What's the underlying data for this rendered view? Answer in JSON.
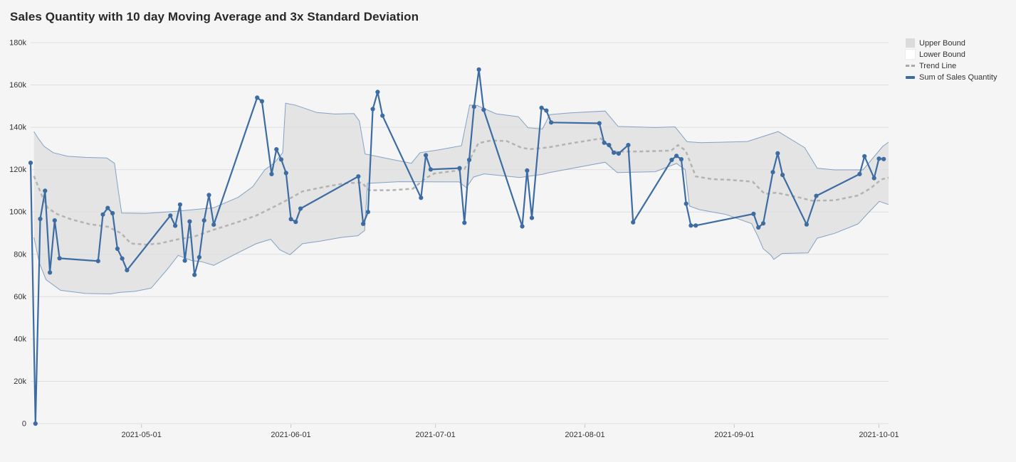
{
  "header": {
    "title": "Sales Quantity with 10 day Moving Average and 3x Standard Deviation"
  },
  "legend": {
    "items": [
      {
        "label": "Upper Bound",
        "swatch": "gray-square",
        "color": "#dbdbdb"
      },
      {
        "label": "Lower Bound",
        "swatch": "white-square",
        "color": "#ffffff"
      },
      {
        "label": "Trend Line",
        "swatch": "gray-dashed-line",
        "color": "#a8a8a8"
      },
      {
        "label": "Sum of Sales Quantity",
        "swatch": "blue-line",
        "color": "#3d6ca3"
      }
    ]
  },
  "chart_data": {
    "type": "line",
    "title": "Sales Quantity with 10 day Moving Average and 3x Standard Deviation",
    "xlabel": "",
    "ylabel": "",
    "grid": true,
    "legend_position": "top-right",
    "colors": {
      "background": "#f5f5f6",
      "grid": "#dedede",
      "tick": "#c9c9c9",
      "text": "#333333",
      "series": "#3d6ca3",
      "trend": "#b3b3b3",
      "band_fill": "#d8d8d8",
      "band_outline": "#84a1c4"
    },
    "y_axis": {
      "min": 0,
      "max": 180000,
      "tick_step": 20000,
      "tick_labels": [
        "0",
        "20k",
        "40k",
        "60k",
        "80k",
        "100k",
        "120k",
        "140k",
        "160k",
        "180k"
      ]
    },
    "x_axis": {
      "start_date": "2021-04-08",
      "end_day": 178,
      "ticks": [
        {
          "label": "2021-05-01",
          "day": 23
        },
        {
          "label": "2021-06-01",
          "day": 54
        },
        {
          "label": "2021-07-01",
          "day": 84
        },
        {
          "label": "2021-08-01",
          "day": 115
        },
        {
          "label": "2021-09-01",
          "day": 146
        },
        {
          "label": "2021-10-01",
          "day": 176
        }
      ]
    },
    "series": [
      {
        "name": "Sum of Sales Quantity",
        "style": "solid-with-markers",
        "points_format": [
          "date",
          "value"
        ],
        "points": [
          [
            "2021-04-08",
            123200
          ],
          [
            "2021-04-09",
            0
          ],
          [
            "2021-04-10",
            96700
          ],
          [
            "2021-04-11",
            110000
          ],
          [
            "2021-04-12",
            71400
          ],
          [
            "2021-04-13",
            96000
          ],
          [
            "2021-04-14",
            78100
          ],
          [
            "2021-04-22",
            76800
          ],
          [
            "2021-04-23",
            98800
          ],
          [
            "2021-04-24",
            101900
          ],
          [
            "2021-04-25",
            99400
          ],
          [
            "2021-04-26",
            82600
          ],
          [
            "2021-04-27",
            78000
          ],
          [
            "2021-04-28",
            72500
          ],
          [
            "2021-05-07",
            98300
          ],
          [
            "2021-05-08",
            93500
          ],
          [
            "2021-05-09",
            103500
          ],
          [
            "2021-05-10",
            77000
          ],
          [
            "2021-05-11",
            95500
          ],
          [
            "2021-05-12",
            70300
          ],
          [
            "2021-05-13",
            78600
          ],
          [
            "2021-05-14",
            96000
          ],
          [
            "2021-05-15",
            108000
          ],
          [
            "2021-05-16",
            94000
          ],
          [
            "2021-05-25",
            154000
          ],
          [
            "2021-05-26",
            152300
          ],
          [
            "2021-05-28",
            117900
          ],
          [
            "2021-05-29",
            129600
          ],
          [
            "2021-05-30",
            124800
          ],
          [
            "2021-05-31",
            118400
          ],
          [
            "2021-06-01",
            96600
          ],
          [
            "2021-06-02",
            95300
          ],
          [
            "2021-06-03",
            101600
          ],
          [
            "2021-06-15",
            116800
          ],
          [
            "2021-06-16",
            94400
          ],
          [
            "2021-06-17",
            100000
          ],
          [
            "2021-06-18",
            148600
          ],
          [
            "2021-06-19",
            156700
          ],
          [
            "2021-06-20",
            145500
          ],
          [
            "2021-06-28",
            106700
          ],
          [
            "2021-06-29",
            126800
          ],
          [
            "2021-06-30",
            120100
          ],
          [
            "2021-07-06",
            120700
          ],
          [
            "2021-07-07",
            94900
          ],
          [
            "2021-07-08",
            124600
          ],
          [
            "2021-07-09",
            149700
          ],
          [
            "2021-07-10",
            167300
          ],
          [
            "2021-07-11",
            148300
          ],
          [
            "2021-07-19",
            93200
          ],
          [
            "2021-07-20",
            119600
          ],
          [
            "2021-07-21",
            97200
          ],
          [
            "2021-07-23",
            149200
          ],
          [
            "2021-07-24",
            147900
          ],
          [
            "2021-07-25",
            142300
          ],
          [
            "2021-08-04",
            141900
          ],
          [
            "2021-08-05",
            132700
          ],
          [
            "2021-08-06",
            131600
          ],
          [
            "2021-08-07",
            128000
          ],
          [
            "2021-08-08",
            127600
          ],
          [
            "2021-08-10",
            131600
          ],
          [
            "2021-08-11",
            95100
          ],
          [
            "2021-08-19",
            124600
          ],
          [
            "2021-08-20",
            126500
          ],
          [
            "2021-08-21",
            124900
          ],
          [
            "2021-08-22",
            103900
          ],
          [
            "2021-08-23",
            93600
          ],
          [
            "2021-08-24",
            93600
          ],
          [
            "2021-09-05",
            99100
          ],
          [
            "2021-09-06",
            92700
          ],
          [
            "2021-09-07",
            94600
          ],
          [
            "2021-09-09",
            118800
          ],
          [
            "2021-09-10",
            127700
          ],
          [
            "2021-09-11",
            117500
          ],
          [
            "2021-09-16",
            94100
          ],
          [
            "2021-09-18",
            107600
          ],
          [
            "2021-09-27",
            117900
          ],
          [
            "2021-09-28",
            126300
          ],
          [
            "2021-09-30",
            116000
          ],
          [
            "2021-10-01",
            125200
          ],
          [
            "2021-10-02",
            125000
          ]
        ]
      },
      {
        "name": "Trend Line",
        "style": "dashed",
        "points_format": [
          "day_offset",
          "value"
        ],
        "points": [
          [
            0.7,
            117000
          ],
          [
            2.1,
            109000
          ],
          [
            3.5,
            102000
          ],
          [
            5.5,
            99000
          ],
          [
            8.4,
            96500
          ],
          [
            12.1,
            94300
          ],
          [
            16.1,
            93000
          ],
          [
            18.8,
            89900
          ],
          [
            20.8,
            85100
          ],
          [
            23.9,
            84600
          ],
          [
            26.7,
            85100
          ],
          [
            30.6,
            87100
          ],
          [
            33.8,
            88300
          ],
          [
            38,
            91600
          ],
          [
            42.7,
            95000
          ],
          [
            46.8,
            98300
          ],
          [
            50.1,
            102000
          ],
          [
            53.5,
            106000
          ],
          [
            56.4,
            109700
          ],
          [
            60.4,
            111600
          ],
          [
            65.3,
            113600
          ],
          [
            68.7,
            113900
          ],
          [
            70.2,
            110300
          ],
          [
            74.9,
            110300
          ],
          [
            79.3,
            111000
          ],
          [
            82,
            116000
          ],
          [
            83.8,
            118200
          ],
          [
            88.2,
            119500
          ],
          [
            90,
            120300
          ],
          [
            91.4,
            126000
          ],
          [
            92.9,
            132500
          ],
          [
            95.6,
            133800
          ],
          [
            98.8,
            133500
          ],
          [
            101.9,
            130300
          ],
          [
            103.7,
            129700
          ],
          [
            107.4,
            130500
          ],
          [
            111.8,
            132300
          ],
          [
            118.3,
            134700
          ],
          [
            121.3,
            128500
          ],
          [
            126.6,
            128600
          ],
          [
            132.9,
            129000
          ],
          [
            134.3,
            131600
          ],
          [
            135.9,
            129000
          ],
          [
            138,
            116800
          ],
          [
            141.4,
            115500
          ],
          [
            144.3,
            115300
          ],
          [
            149.8,
            114300
          ],
          [
            152.3,
            108500
          ],
          [
            154.7,
            109100
          ],
          [
            159.4,
            106900
          ],
          [
            162.1,
            105300
          ],
          [
            166.8,
            105500
          ],
          [
            171.7,
            107800
          ],
          [
            174.2,
            111100
          ],
          [
            176.5,
            115400
          ],
          [
            178,
            116200
          ]
        ]
      },
      {
        "name": "Upper Bound",
        "style": "band-upper",
        "points_format": [
          "day_offset",
          "value"
        ],
        "points": [
          [
            0.7,
            138000
          ],
          [
            1.5,
            135000
          ],
          [
            2.8,
            131000
          ],
          [
            4.7,
            128000
          ],
          [
            7.7,
            126300
          ],
          [
            11.4,
            125800
          ],
          [
            15.8,
            125500
          ],
          [
            17.4,
            123000
          ],
          [
            18.2,
            110000
          ],
          [
            18.9,
            99500
          ],
          [
            23.9,
            99300
          ],
          [
            30.6,
            100400
          ],
          [
            38,
            102000
          ],
          [
            43.1,
            107000
          ],
          [
            46.1,
            112000
          ],
          [
            48.6,
            120000
          ],
          [
            50.5,
            123000
          ],
          [
            52.3,
            128000
          ],
          [
            52.9,
            151400
          ],
          [
            54.9,
            150500
          ],
          [
            59.4,
            147000
          ],
          [
            63.1,
            146300
          ],
          [
            67.1,
            146500
          ],
          [
            68.2,
            143000
          ],
          [
            69.4,
            127400
          ],
          [
            74.2,
            125200
          ],
          [
            79,
            123000
          ],
          [
            80.8,
            128000
          ],
          [
            84.5,
            129300
          ],
          [
            89.4,
            131300
          ],
          [
            91.1,
            150500
          ],
          [
            92.6,
            150300
          ],
          [
            96.6,
            146400
          ],
          [
            101.2,
            145000
          ],
          [
            103.2,
            139800
          ],
          [
            106.2,
            139200
          ],
          [
            107.7,
            146000
          ],
          [
            111.8,
            146800
          ],
          [
            119.2,
            147700
          ],
          [
            121.9,
            140400
          ],
          [
            129.6,
            139900
          ],
          [
            133.7,
            140200
          ],
          [
            136.2,
            133200
          ],
          [
            139.1,
            132700
          ],
          [
            148.7,
            133300
          ],
          [
            155.1,
            138000
          ],
          [
            160.6,
            130400
          ],
          [
            163.2,
            120700
          ],
          [
            166.8,
            119900
          ],
          [
            172.7,
            119900
          ],
          [
            176.8,
            131000
          ],
          [
            178,
            133000
          ]
        ]
      },
      {
        "name": "Lower Bound",
        "style": "band-lower",
        "points_format": [
          "day_offset",
          "value"
        ],
        "points": [
          [
            0.7,
            88000
          ],
          [
            1.8,
            76000
          ],
          [
            3.2,
            68000
          ],
          [
            6.2,
            63000
          ],
          [
            11.4,
            61500
          ],
          [
            16.5,
            61300
          ],
          [
            18.5,
            62000
          ],
          [
            21.7,
            62500
          ],
          [
            25,
            64000
          ],
          [
            28.4,
            73000
          ],
          [
            30.6,
            79500
          ],
          [
            33.5,
            77000
          ],
          [
            35.5,
            76500
          ],
          [
            38,
            74800
          ],
          [
            42.4,
            80000
          ],
          [
            46.8,
            85000
          ],
          [
            49.8,
            87100
          ],
          [
            51.7,
            82100
          ],
          [
            53.8,
            79800
          ],
          [
            56.4,
            85000
          ],
          [
            60.1,
            86200
          ],
          [
            64.5,
            88000
          ],
          [
            67.9,
            88800
          ],
          [
            69.3,
            91200
          ],
          [
            69.9,
            113500
          ],
          [
            76.4,
            114300
          ],
          [
            85.2,
            114200
          ],
          [
            88.9,
            114200
          ],
          [
            90.4,
            111500
          ],
          [
            91.9,
            116500
          ],
          [
            94.1,
            118000
          ],
          [
            101.5,
            116300
          ],
          [
            106.2,
            117800
          ],
          [
            107.4,
            118500
          ],
          [
            119.2,
            123500
          ],
          [
            121.7,
            118600
          ],
          [
            129.6,
            119000
          ],
          [
            134,
            122900
          ],
          [
            135.8,
            120000
          ],
          [
            136.7,
            102800
          ],
          [
            138.7,
            101100
          ],
          [
            144.3,
            98800
          ],
          [
            149.6,
            94500
          ],
          [
            151,
            88000
          ],
          [
            152,
            82600
          ],
          [
            153.5,
            79800
          ],
          [
            154.2,
            77600
          ],
          [
            155.9,
            80400
          ],
          [
            161.3,
            80700
          ],
          [
            163.2,
            87600
          ],
          [
            166.8,
            89900
          ],
          [
            171.7,
            94400
          ],
          [
            173.6,
            99100
          ],
          [
            176.1,
            105000
          ],
          [
            178,
            103500
          ]
        ]
      }
    ]
  }
}
